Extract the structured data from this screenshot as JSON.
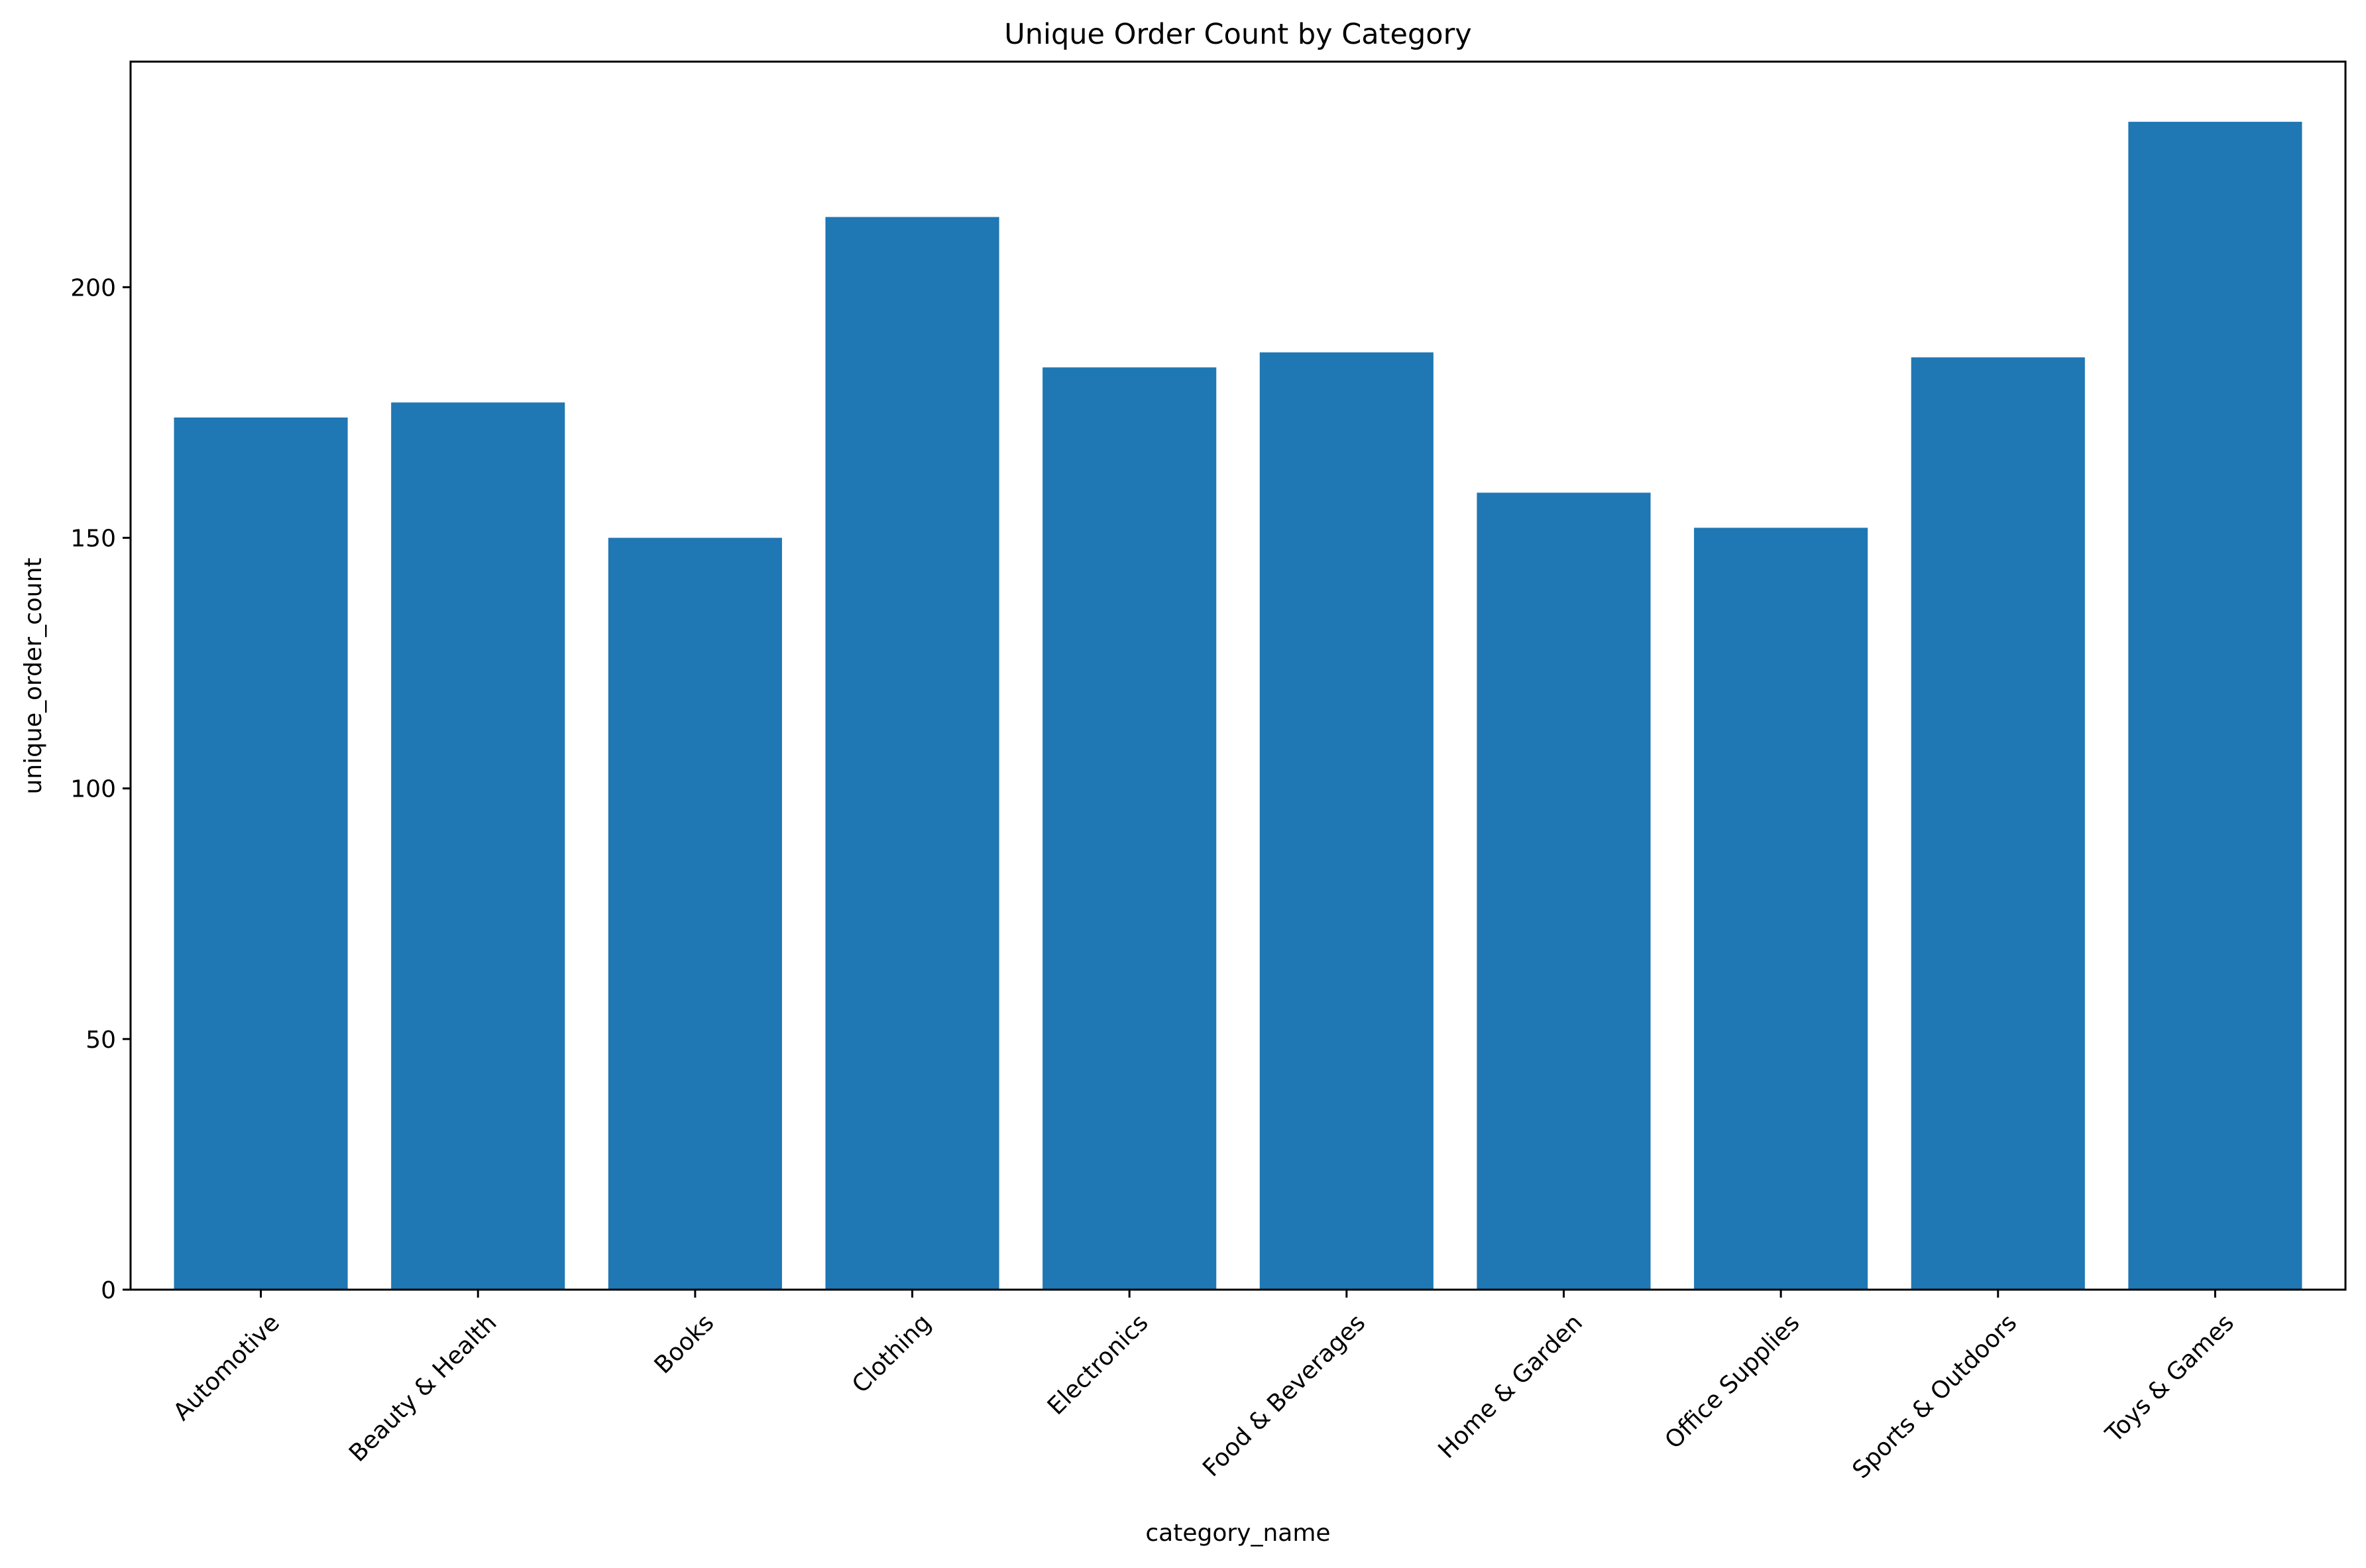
{
  "chart_data": {
    "type": "bar",
    "title": "Unique Order Count by Category",
    "xlabel": "category_name",
    "ylabel": "unique_order_count",
    "categories": [
      "Automotive",
      "Beauty & Health",
      "Books",
      "Clothing",
      "Electronics",
      "Food & Beverages",
      "Home & Garden",
      "Office Supplies",
      "Sports & Outdoors",
      "Toys & Games"
    ],
    "values": [
      174,
      177,
      150,
      214,
      184,
      187,
      159,
      152,
      186,
      233
    ],
    "ylim": [
      0,
      245
    ],
    "yticks": [
      0,
      50,
      100,
      150,
      200
    ],
    "grid": false,
    "bar_color": "#1f77b4",
    "axis_color": "#000000",
    "background": "#ffffff"
  }
}
